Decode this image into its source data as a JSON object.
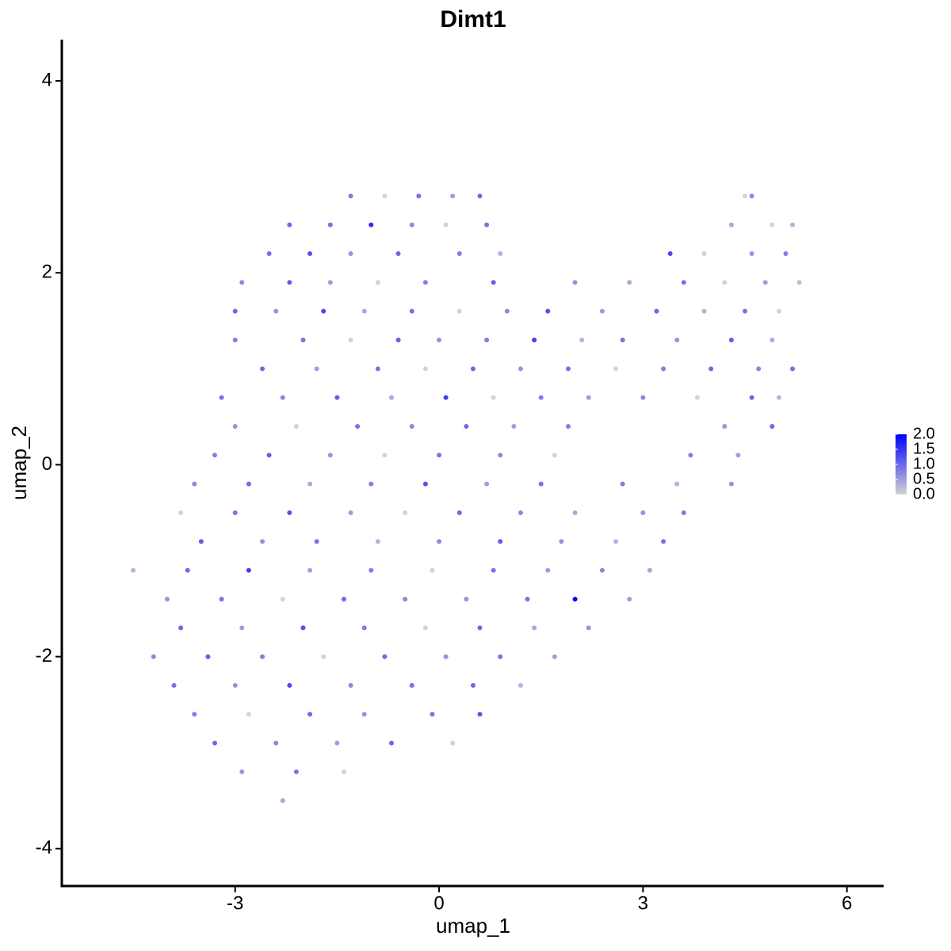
{
  "chart_data": {
    "type": "scatter",
    "title": "Dimt1",
    "xlabel": "umap_1",
    "ylabel": "umap_2",
    "xlim": [
      -5.55,
      6.54
    ],
    "ylim": [
      -4.39,
      4.43
    ],
    "xticks": [
      -3,
      0,
      3,
      6
    ],
    "yticks": [
      -4,
      -2,
      0,
      2,
      4
    ],
    "clim": [
      0,
      2
    ],
    "low_color": "#d3d3d3",
    "high_color": "#0000ff",
    "cticks": [
      {
        "value": 0,
        "label": "0.0"
      },
      {
        "value": 0.5,
        "label": "0.5"
      },
      {
        "value": 1,
        "label": "1.0"
      },
      {
        "value": 1.5,
        "label": "1.5"
      },
      {
        "value": 2,
        "label": "2.0"
      }
    ],
    "x": [
      -1.3,
      -0.8,
      -0.3,
      0.2,
      0.6,
      4.5,
      4.6,
      -2.2,
      -1.6,
      -1.0,
      -0.4,
      0.1,
      0.7,
      4.3,
      4.9,
      5.2,
      -2.5,
      -1.9,
      -1.3,
      -0.6,
      0.3,
      0.9,
      3.4,
      3.9,
      4.6,
      5.1,
      -2.9,
      -2.2,
      -1.6,
      -0.9,
      -0.2,
      0.8,
      2.0,
      2.8,
      3.6,
      4.2,
      4.8,
      5.3,
      -3.0,
      -2.4,
      -1.7,
      -1.1,
      -0.4,
      0.3,
      1.0,
      1.6,
      2.4,
      3.2,
      3.9,
      4.5,
      5.0,
      -3.0,
      -2.0,
      -1.3,
      -0.6,
      0.0,
      0.7,
      1.4,
      2.1,
      2.7,
      3.5,
      4.3,
      4.9,
      -2.6,
      -1.8,
      -0.9,
      -0.2,
      0.5,
      1.2,
      1.9,
      2.6,
      3.3,
      4.0,
      4.7,
      5.2,
      -3.2,
      -2.3,
      -1.5,
      -0.7,
      0.1,
      0.8,
      1.5,
      2.2,
      3.0,
      3.8,
      4.6,
      5.0,
      -3.0,
      -2.1,
      -1.2,
      -0.4,
      0.4,
      1.1,
      1.9,
      4.2,
      4.9,
      -3.3,
      -2.5,
      -1.6,
      -0.8,
      0.0,
      0.9,
      1.7,
      3.7,
      4.4,
      -3.6,
      -2.8,
      -1.9,
      -1.0,
      -0.2,
      0.7,
      1.5,
      2.7,
      3.5,
      4.3,
      -3.8,
      -3.0,
      -2.2,
      -1.3,
      -0.5,
      0.3,
      1.2,
      2.0,
      3.0,
      3.6,
      -3.5,
      -2.6,
      -1.8,
      -0.9,
      0.0,
      0.9,
      1.8,
      2.6,
      3.3,
      -4.5,
      -3.7,
      -2.8,
      -1.9,
      -1.0,
      -0.1,
      0.8,
      1.6,
      2.4,
      3.1,
      -4.0,
      -3.2,
      -2.3,
      -1.4,
      -0.5,
      0.4,
      1.3,
      2.0,
      2.8,
      -3.8,
      -2.9,
      -2.0,
      -1.1,
      -0.2,
      0.6,
      1.4,
      2.2,
      -4.2,
      -3.4,
      -2.6,
      -1.7,
      -0.8,
      0.1,
      0.9,
      1.7,
      -3.9,
      -3.0,
      -2.2,
      -1.3,
      -0.4,
      0.5,
      1.2,
      -3.6,
      -2.8,
      -1.9,
      -1.1,
      -0.1,
      0.6,
      -3.3,
      -2.4,
      -1.5,
      -0.7,
      0.2,
      -2.9,
      -2.1,
      -1.4,
      -2.3
    ],
    "y": [
      2.8,
      2.8,
      2.8,
      2.8,
      2.8,
      2.8,
      2.8,
      2.5,
      2.5,
      2.5,
      2.5,
      2.5,
      2.5,
      2.5,
      2.5,
      2.5,
      2.2,
      2.2,
      2.2,
      2.2,
      2.2,
      2.2,
      2.2,
      2.2,
      2.2,
      2.2,
      1.9,
      1.9,
      1.9,
      1.9,
      1.9,
      1.9,
      1.9,
      1.9,
      1.9,
      1.9,
      1.9,
      1.9,
      1.6,
      1.6,
      1.6,
      1.6,
      1.6,
      1.6,
      1.6,
      1.6,
      1.6,
      1.6,
      1.6,
      1.6,
      1.6,
      1.3,
      1.3,
      1.3,
      1.3,
      1.3,
      1.3,
      1.3,
      1.3,
      1.3,
      1.3,
      1.3,
      1.3,
      1.0,
      1.0,
      1.0,
      1.0,
      1.0,
      1.0,
      1.0,
      1.0,
      1.0,
      1.0,
      1.0,
      1.0,
      0.7,
      0.7,
      0.7,
      0.7,
      0.7,
      0.7,
      0.7,
      0.7,
      0.7,
      0.7,
      0.7,
      0.7,
      0.4,
      0.4,
      0.4,
      0.4,
      0.4,
      0.4,
      0.4,
      0.4,
      0.4,
      0.1,
      0.1,
      0.1,
      0.1,
      0.1,
      0.1,
      0.1,
      0.1,
      0.1,
      -0.2,
      -0.2,
      -0.2,
      -0.2,
      -0.2,
      -0.2,
      -0.2,
      -0.2,
      -0.2,
      -0.2,
      -0.5,
      -0.5,
      -0.5,
      -0.5,
      -0.5,
      -0.5,
      -0.5,
      -0.5,
      -0.5,
      -0.5,
      -0.8,
      -0.8,
      -0.8,
      -0.8,
      -0.8,
      -0.8,
      -0.8,
      -0.8,
      -0.8,
      -1.1,
      -1.1,
      -1.1,
      -1.1,
      -1.1,
      -1.1,
      -1.1,
      -1.1,
      -1.1,
      -1.1,
      -1.4,
      -1.4,
      -1.4,
      -1.4,
      -1.4,
      -1.4,
      -1.4,
      -1.4,
      -1.4,
      -1.7,
      -1.7,
      -1.7,
      -1.7,
      -1.7,
      -1.7,
      -1.7,
      -1.7,
      -2.0,
      -2.0,
      -2.0,
      -2.0,
      -2.0,
      -2.0,
      -2.0,
      -2.0,
      -2.3,
      -2.3,
      -2.3,
      -2.3,
      -2.3,
      -2.3,
      -2.3,
      -2.6,
      -2.6,
      -2.6,
      -2.6,
      -2.6,
      -2.6,
      -2.9,
      -2.9,
      -2.9,
      -2.9,
      -2.9,
      -3.2,
      -3.2,
      -3.2,
      -3.5
    ],
    "values": [
      0.8,
      0,
      0.9,
      0.5,
      1.0,
      0,
      0.7,
      1.0,
      0.9,
      1.6,
      0.7,
      0,
      0.9,
      0.4,
      0,
      0.3,
      0.9,
      1.2,
      0.6,
      1.0,
      0.8,
      0.3,
      1.3,
      0,
      0.6,
      0.8,
      0.7,
      1.1,
      0.5,
      0,
      0.8,
      1.1,
      0.6,
      0.4,
      0.9,
      0,
      0.5,
      0.2,
      1.0,
      0.6,
      1.3,
      0.4,
      0.9,
      0,
      0.7,
      1.2,
      0.5,
      1.0,
      0.3,
      0.9,
      0,
      0.8,
      0.9,
      0,
      1.1,
      0.6,
      0.8,
      1.4,
      0.3,
      0.9,
      0.6,
      1.1,
      0.4,
      1.0,
      0.5,
      0.9,
      0,
      1.0,
      0.6,
      0.9,
      0,
      0.8,
      1.0,
      0.7,
      0.9,
      0.9,
      0.7,
      1.1,
      0.4,
      1.4,
      0,
      0.8,
      0.5,
      0.7,
      0,
      1.0,
      0.3,
      0.6,
      0,
      0.9,
      0.7,
      1.0,
      0.5,
      0.8,
      0.6,
      1.0,
      0.8,
      1.1,
      0.6,
      0,
      0.9,
      0.7,
      0,
      0.8,
      0.5,
      0.7,
      1.0,
      0.4,
      0.8,
      1.2,
      0.5,
      0.9,
      0.8,
      0.3,
      0.6,
      0,
      0.9,
      1.2,
      0.5,
      0,
      1.0,
      0.7,
      0.4,
      0.6,
      0.8,
      1.1,
      0.6,
      0.9,
      0.3,
      0.7,
      1.1,
      0.6,
      0.3,
      0.9,
      0.3,
      1.0,
      1.4,
      0.5,
      0.8,
      0,
      0.9,
      0.5,
      0.7,
      0.4,
      0.6,
      0.9,
      0,
      1.0,
      0.7,
      0.6,
      0.9,
      2.0,
      0.5,
      1.0,
      0.5,
      1.2,
      0.8,
      0,
      1.0,
      0.4,
      0.6,
      0.7,
      1.1,
      0.8,
      0,
      1.0,
      0.6,
      0.9,
      0.5,
      0.9,
      0.6,
      1.3,
      0.7,
      0.9,
      1.0,
      0.3,
      0.8,
      0,
      1.0,
      0.6,
      0.9,
      1.2,
      1.0,
      0.7,
      0.5,
      1.0,
      0,
      0.6,
      0.9,
      0,
      0.4
    ]
  }
}
